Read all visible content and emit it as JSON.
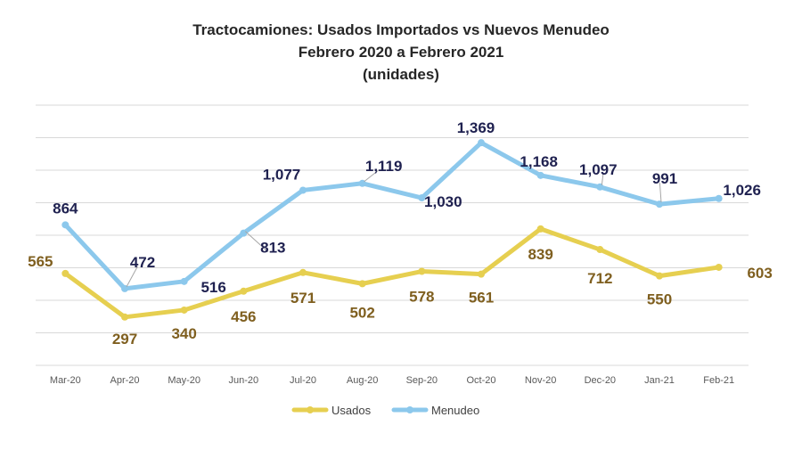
{
  "chart_data": {
    "type": "line",
    "title": "Tractocamiones: Usados Importados  vs Nuevos Menudeo",
    "subtitle": "Febrero 2020 a Febrero 2021",
    "unit_label": "(unidades)",
    "categories": [
      "Mar-20",
      "Apr-20",
      "May-20",
      "Jun-20",
      "Jul-20",
      "Aug-20",
      "Sep-20",
      "Oct-20",
      "Nov-20",
      "Dec-20",
      "Jan-21",
      "Feb-21"
    ],
    "series": [
      {
        "name": "Usados",
        "color": "#E6CF50",
        "label_color": "#7F5F1F",
        "values": [
          565,
          297,
          340,
          456,
          571,
          502,
          578,
          561,
          839,
          712,
          550,
          603
        ],
        "labels": [
          "565",
          "297",
          "340",
          "456",
          "571",
          "502",
          "578",
          "561",
          "839",
          "712",
          "550",
          "603"
        ]
      },
      {
        "name": "Menudeo",
        "color": "#8CC8EC",
        "label_color": "#1F2150",
        "values": [
          864,
          472,
          516,
          813,
          1077,
          1119,
          1030,
          1369,
          1168,
          1097,
          991,
          1026
        ],
        "labels": [
          "864",
          "472",
          "516",
          "813",
          "1,077",
          "1,119",
          "1,030",
          "1,369",
          "1,168",
          "1,097",
          "991",
          "1,026"
        ]
      }
    ],
    "ylim": [
      0,
      1600
    ],
    "grid": true,
    "legend": "bottom-center"
  }
}
